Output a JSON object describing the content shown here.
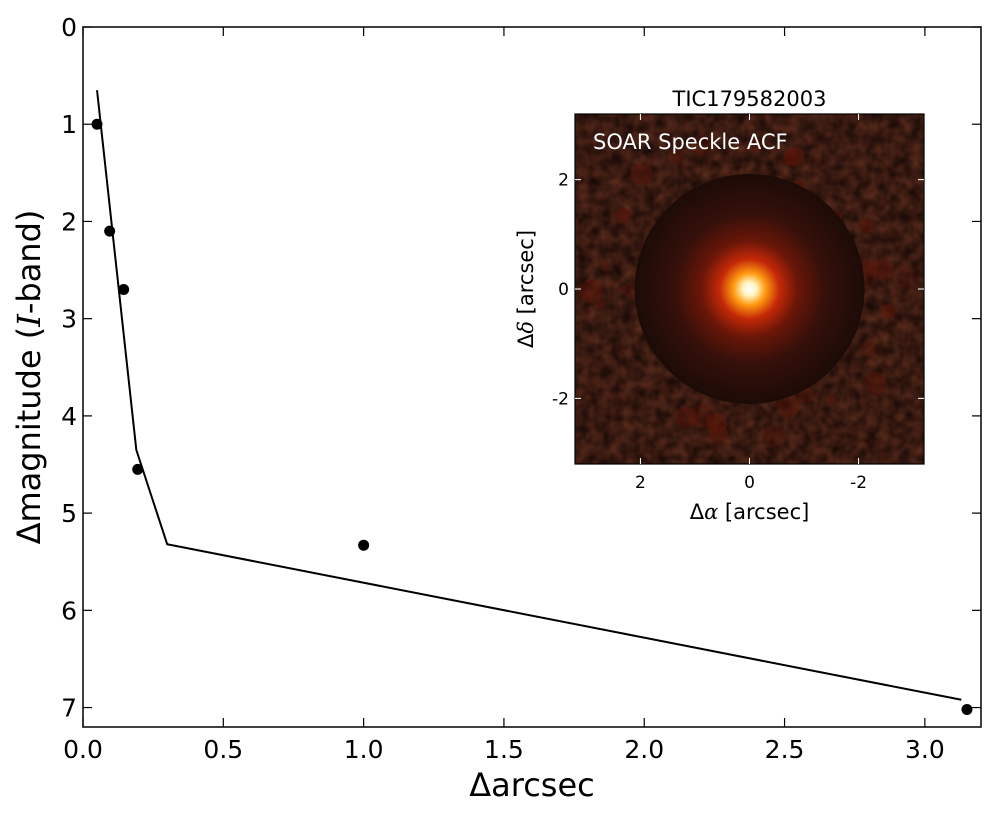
{
  "chart_data": [
    {
      "type": "scatter",
      "xlabel": "Δarcsec",
      "ylabel_parts": [
        "Δmagnitude (",
        "I",
        "-band)"
      ],
      "xlim": [
        0.0,
        3.2
      ],
      "ylim": [
        7.2,
        0
      ],
      "y_inverted": true,
      "xticks": [
        0.0,
        0.5,
        1.0,
        1.5,
        2.0,
        2.5,
        3.0
      ],
      "xtick_labels": [
        "0.0",
        "0.5",
        "1.0",
        "1.5",
        "2.0",
        "2.5",
        "3.0"
      ],
      "yticks": [
        0,
        1,
        2,
        3,
        4,
        5,
        6,
        7
      ],
      "ytick_labels": [
        "0",
        "1",
        "2",
        "3",
        "4",
        "5",
        "6",
        "7"
      ],
      "grid": false,
      "series": [
        {
          "kind": "points",
          "color": "#000000",
          "x": [
            0.05,
            0.095,
            0.145,
            0.195,
            1.0,
            3.15
          ],
          "y": [
            1.0,
            2.1,
            2.7,
            4.55,
            5.33,
            7.02
          ]
        },
        {
          "kind": "line",
          "color": "#000000",
          "x": [
            0.05,
            0.19,
            0.3,
            3.13
          ],
          "y": [
            0.65,
            4.35,
            5.32,
            6.92
          ]
        }
      ]
    },
    {
      "type": "heatmap",
      "title": "TIC179582003",
      "annotation": "SOAR Speckle ACF",
      "xlabel_parts": [
        "Δ",
        "α",
        " [arcsec]"
      ],
      "ylabel_parts": [
        "Δ",
        "δ",
        " [arcsec]"
      ],
      "xlim": [
        3.2,
        -3.2
      ],
      "ylim": [
        -3.2,
        3.2
      ],
      "xticks": [
        2,
        0,
        -2
      ],
      "xtick_labels": [
        "2",
        "0",
        "-2"
      ],
      "yticks": [
        2,
        0,
        -2
      ],
      "ytick_labels": [
        "2",
        "0",
        "-2"
      ],
      "colormap": "hot",
      "background_color": "#1c0b07"
    }
  ]
}
